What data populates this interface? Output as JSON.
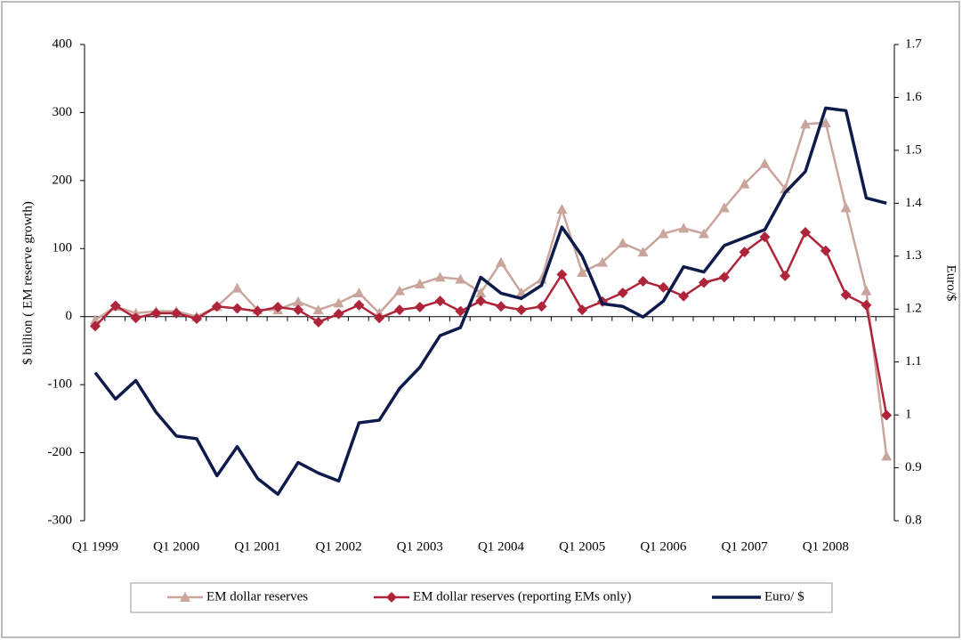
{
  "chart_data": {
    "type": "line",
    "categories": [
      "Q1 1999",
      null,
      null,
      null,
      "Q1 2000",
      null,
      null,
      null,
      "Q1 2001",
      null,
      null,
      null,
      "Q1 2002",
      null,
      null,
      null,
      "Q1 2003",
      null,
      null,
      null,
      "Q1 2004",
      null,
      null,
      null,
      "Q1 2005",
      null,
      null,
      null,
      "Q1 2006",
      null,
      null,
      null,
      "Q1 2007",
      null,
      null,
      null,
      "Q1 2008",
      null,
      null,
      null
    ],
    "series": [
      {
        "name": "EM dollar reserves",
        "color": "#c9a59b",
        "marker": "triangle",
        "values": [
          -5,
          15,
          5,
          8,
          8,
          0,
          15,
          42,
          10,
          10,
          22,
          10,
          20,
          35,
          5,
          38,
          48,
          58,
          55,
          35,
          80,
          35,
          55,
          158,
          65,
          80,
          108,
          95,
          122,
          130,
          122,
          160,
          195,
          225,
          188,
          283,
          285,
          160,
          38,
          -205
        ]
      },
      {
        "name": "EM dollar reserves (reporting EMs only)",
        "color": "#b0243a",
        "marker": "diamond",
        "values": [
          -14,
          16,
          -2,
          5,
          5,
          -3,
          15,
          12,
          8,
          14,
          10,
          -8,
          4,
          17,
          -2,
          10,
          14,
          23,
          8,
          23,
          15,
          10,
          15,
          62,
          10,
          22,
          35,
          52,
          43,
          30,
          50,
          58,
          95,
          117,
          60,
          124,
          97,
          32,
          17,
          -145
        ]
      },
      {
        "name": "Euro/ $",
        "color": "#0d1b4b",
        "axis": "y2",
        "values": [
          1.08,
          1.03,
          1.065,
          1.005,
          0.96,
          0.955,
          0.885,
          0.94,
          0.88,
          0.85,
          0.91,
          0.89,
          0.875,
          0.985,
          0.99,
          1.05,
          1.09,
          1.15,
          1.165,
          1.26,
          1.23,
          1.22,
          1.245,
          1.355,
          1.3,
          1.21,
          1.205,
          1.185,
          1.215,
          1.28,
          1.27,
          1.32,
          1.335,
          1.35,
          1.42,
          1.46,
          1.58,
          1.575,
          1.41,
          1.4
        ]
      }
    ],
    "ylabel": "$ billion ( EM reserve growth)",
    "y2label": "Euro/$",
    "ylim": [
      -300,
      400
    ],
    "yticks": [
      -300,
      -200,
      -100,
      0,
      100,
      200,
      300,
      400
    ],
    "y2lim": [
      0.8,
      1.7
    ],
    "y2ticks": [
      0.8,
      0.9,
      1,
      1.1,
      1.2,
      1.3,
      1.4,
      1.5,
      1.6,
      1.7
    ],
    "legend": "bottom",
    "grid": false
  }
}
